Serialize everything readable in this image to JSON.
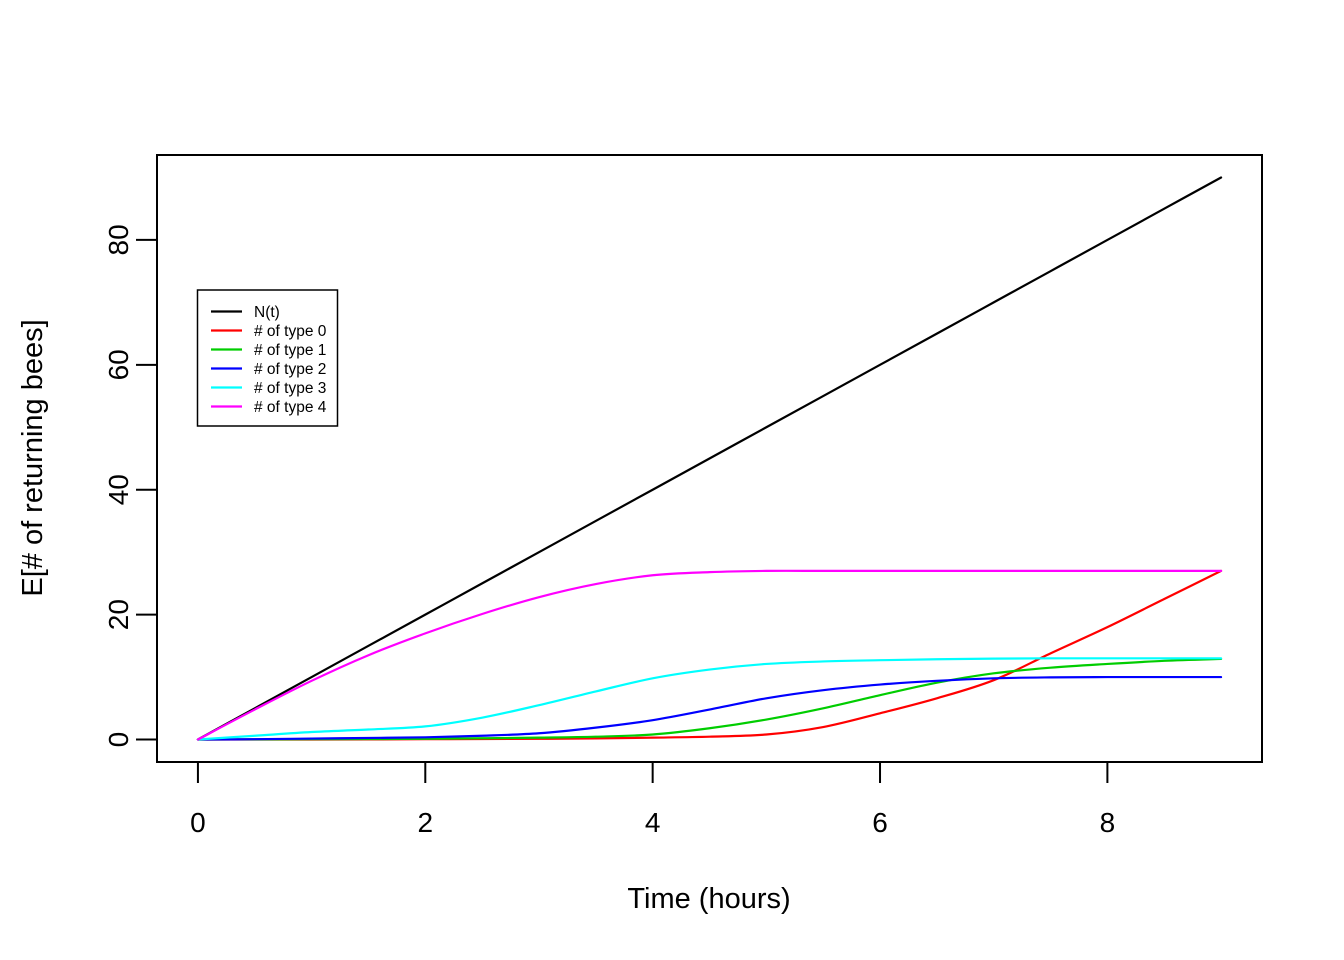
{
  "figure": {
    "background": "#ffffff"
  },
  "chart_data": {
    "type": "line",
    "title": "",
    "xlabel": "Time (hours)",
    "ylabel": "E[# of returning bees]",
    "xlim": [
      -0.36,
      9.36
    ],
    "ylim": [
      -3.6,
      93.6
    ],
    "xticks": [
      0,
      2,
      4,
      6,
      8
    ],
    "yticks": [
      0,
      20,
      40,
      60,
      80
    ],
    "grid": false,
    "legend_position": "inset-upper-left",
    "x": [
      0,
      0.5,
      1,
      1.5,
      2,
      2.5,
      3,
      3.5,
      4,
      4.5,
      5,
      5.5,
      6,
      6.5,
      7,
      7.5,
      8,
      8.5,
      9
    ],
    "series": [
      {
        "name": "N(t)",
        "color": "#000000",
        "values": [
          0,
          5,
          10,
          15,
          20,
          25,
          30,
          35,
          40,
          45,
          50,
          55,
          60,
          65,
          70,
          75,
          80,
          85,
          90
        ]
      },
      {
        "name": "# of type 0",
        "color": "#FF0000",
        "values": [
          0,
          0,
          0,
          0.02,
          0.05,
          0.08,
          0.12,
          0.18,
          0.3,
          0.45,
          0.8,
          2.0,
          4.2,
          6.6,
          9.5,
          13.8,
          18.0,
          22.5,
          27.0
        ]
      },
      {
        "name": "# of type 1",
        "color": "#00CD00",
        "values": [
          0,
          0.02,
          0.05,
          0.08,
          0.12,
          0.2,
          0.3,
          0.45,
          0.8,
          1.8,
          3.2,
          5.0,
          7.1,
          9.1,
          10.6,
          11.5,
          12.1,
          12.6,
          12.9
        ]
      },
      {
        "name": "# of type 2",
        "color": "#0000FF",
        "values": [
          0,
          0.05,
          0.15,
          0.25,
          0.35,
          0.6,
          1.0,
          1.9,
          3.1,
          4.8,
          6.6,
          7.9,
          8.8,
          9.4,
          9.8,
          9.95,
          10,
          10,
          10
        ]
      },
      {
        "name": "# of type 3",
        "color": "#00FFFF",
        "values": [
          0,
          0.6,
          1.2,
          1.6,
          2.1,
          3.5,
          5.5,
          7.7,
          9.8,
          11.2,
          12.1,
          12.5,
          12.7,
          12.85,
          12.95,
          13,
          13,
          13,
          13
        ]
      },
      {
        "name": "# of type 4",
        "color": "#FF00FF",
        "values": [
          0,
          4.8,
          9.4,
          13.5,
          17.0,
          20.1,
          22.8,
          24.9,
          26.3,
          26.8,
          27,
          27,
          27,
          27,
          27,
          27,
          27,
          27,
          27
        ]
      }
    ]
  }
}
